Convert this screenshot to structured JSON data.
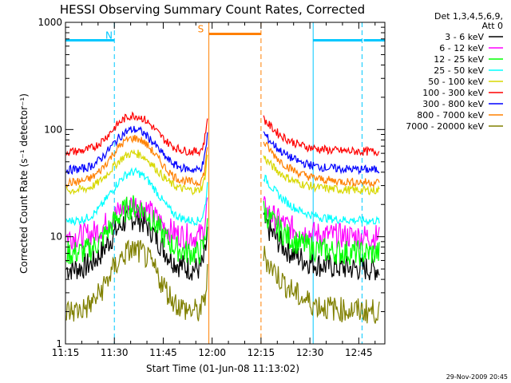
{
  "chart_data": {
    "type": "line",
    "title": "HESSI Observing Summary Count Rates, Corrected",
    "xlabel": "Start Time (01-Jun-08 11:13:02)",
    "ylabel": "Corrected Count Rate (s⁻¹ detector⁻¹)",
    "yscale": "log",
    "ylim": [
      1,
      1000
    ],
    "xlim_minutes": [
      675,
      773
    ],
    "x_ticks": [
      {
        "minute": 675,
        "label": "11:15"
      },
      {
        "minute": 690,
        "label": "11:30"
      },
      {
        "minute": 705,
        "label": "11:45"
      },
      {
        "minute": 720,
        "label": "12:00"
      },
      {
        "minute": 735,
        "label": "12:15"
      },
      {
        "minute": 750,
        "label": "12:30"
      },
      {
        "minute": 765,
        "label": "12:45"
      }
    ],
    "y_ticks": [
      {
        "value": 1,
        "label": "1"
      },
      {
        "value": 10,
        "label": "10"
      },
      {
        "value": 100,
        "label": "100"
      },
      {
        "value": 1000,
        "label": "1000"
      }
    ],
    "legend_title_lines": [
      "Det 1,3,4,5,6,9,",
      "Att 0"
    ],
    "legend_placement": "right",
    "series": [
      {
        "name": "3 - 6 keV",
        "color": "#000000",
        "base": 5,
        "peak": 15
      },
      {
        "name": "6 - 12 keV",
        "color": "#ff00ff",
        "base": 10,
        "peak": 20
      },
      {
        "name": "12 - 25 keV",
        "color": "#00ff00",
        "base": 7,
        "peak": 19
      },
      {
        "name": "25 - 50 keV",
        "color": "#00ffff",
        "base": 14,
        "peak": 40
      },
      {
        "name": "50 - 100 keV",
        "color": "#d8d800",
        "base": 27,
        "peak": 60
      },
      {
        "name": "100 - 300 keV",
        "color": "#ff0000",
        "base": 62,
        "peak": 135
      },
      {
        "name": "300 - 800 keV",
        "color": "#0000ff",
        "base": 42,
        "peak": 100
      },
      {
        "name": "800 - 7000 keV",
        "color": "#ff8000",
        "base": 32,
        "peak": 83
      },
      {
        "name": "7000 - 20000 keV",
        "color": "#808000",
        "base": 2,
        "peak": 7.5
      }
    ],
    "data_gap_minutes": [
      719,
      735
    ],
    "flags": [
      {
        "label": "N",
        "color": "#00c8ff",
        "level": 680,
        "intervals": [
          [
            675,
            690
          ]
        ],
        "marker_minutes": [
          675,
          690,
          751,
          766
        ]
      },
      {
        "label": "S",
        "color": "#ff8000",
        "level": 780,
        "intervals": [
          [
            719,
            735
          ]
        ],
        "marker_minutes": [
          719,
          735
        ]
      }
    ],
    "footer": "29-Nov-2009 20:45"
  }
}
